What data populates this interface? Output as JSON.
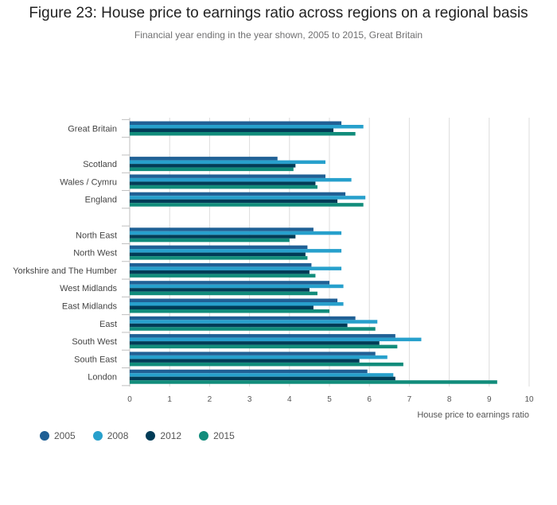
{
  "chart_data": {
    "type": "bar",
    "orientation": "horizontal",
    "title": "Figure 23: House price to earnings ratio across regions on a regional basis",
    "subtitle": "Financial year ending in the year shown, 2005 to 2015, Great Britain",
    "xlabel": "House price to earnings ratio",
    "ylabel": "",
    "xlim": [
      0,
      10
    ],
    "xticks": [
      "0",
      "1",
      "2",
      "3",
      "4",
      "5",
      "6",
      "7",
      "8",
      "9",
      "10"
    ],
    "grid": true,
    "legend_position": "bottom-left",
    "categories": [
      "Great Britain",
      "",
      "Scotland",
      "Wales / Cymru",
      "England",
      "",
      "North East",
      "North West",
      "Yorkshire and The Humber",
      "West Midlands",
      "East Midlands",
      "East",
      "South West",
      "South East",
      "London"
    ],
    "series": [
      {
        "name": "2005",
        "color": "#206095",
        "values": [
          5.3,
          null,
          3.7,
          4.9,
          5.4,
          null,
          4.6,
          4.45,
          4.55,
          5.0,
          5.2,
          5.65,
          6.65,
          6.15,
          5.95
        ]
      },
      {
        "name": "2008",
        "color": "#27a0cc",
        "values": [
          5.85,
          null,
          4.9,
          5.55,
          5.9,
          null,
          5.3,
          5.3,
          5.3,
          5.35,
          5.35,
          6.2,
          7.3,
          6.45,
          6.6
        ]
      },
      {
        "name": "2012",
        "color": "#003c57",
        "values": [
          5.1,
          null,
          4.15,
          4.65,
          5.2,
          null,
          4.15,
          4.4,
          4.5,
          4.5,
          4.6,
          5.45,
          6.25,
          5.75,
          6.65
        ]
      },
      {
        "name": "2015",
        "color": "#118c7b",
        "values": [
          5.65,
          null,
          4.1,
          4.7,
          5.85,
          null,
          4.0,
          4.45,
          4.65,
          4.7,
          5.0,
          6.15,
          6.7,
          6.85,
          9.2
        ]
      }
    ]
  }
}
